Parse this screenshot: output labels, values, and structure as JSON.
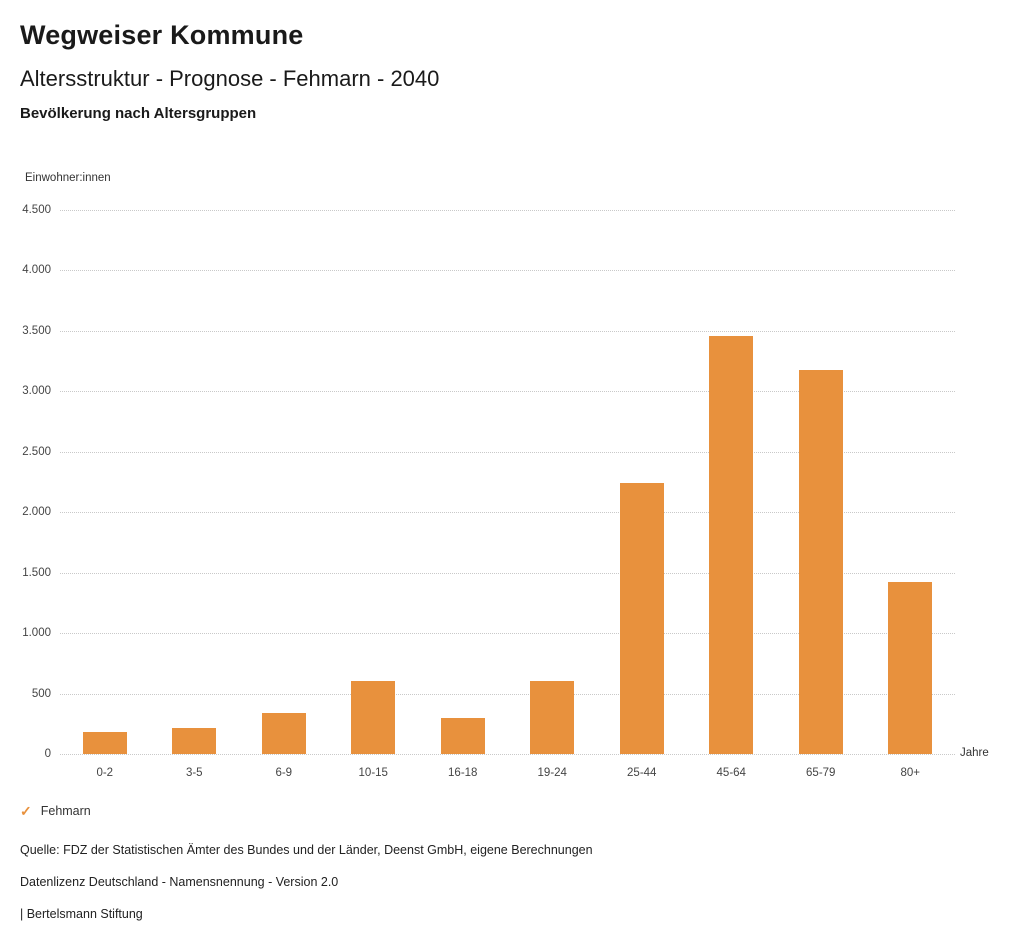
{
  "header": {
    "title": "Wegweiser Kommune",
    "subtitle": "Altersstruktur - Prognose - Fehmarn - 2040",
    "section": "Bevölkerung nach Altersgruppen"
  },
  "chart_data": {
    "type": "bar",
    "title": "Bevölkerung nach Altersgruppen",
    "categories": [
      "0-2",
      "3-5",
      "6-9",
      "10-15",
      "16-18",
      "19-24",
      "25-44",
      "45-64",
      "65-79",
      "80+"
    ],
    "values": [
      180,
      215,
      340,
      600,
      300,
      600,
      2240,
      3460,
      3175,
      1420
    ],
    "series_name": "Fehmarn",
    "ylabel": "Einwohner:innen",
    "xlabel": "Jahre",
    "ylim": [
      0,
      4500
    ],
    "y_ticks": [
      0,
      500,
      1000,
      1500,
      2000,
      2500,
      3000,
      3500,
      4000,
      4500
    ],
    "grid": "dotted-horizontal",
    "legend_position": "bottom-left",
    "bar_color": "#E8913D"
  },
  "legend": {
    "marker": "✓",
    "label": "Fehmarn",
    "color": "#E8913D"
  },
  "footer": {
    "source": "Quelle: FDZ der Statistischen Ämter des Bundes und der Länder, Deenst GmbH, eigene Berechnungen",
    "license": "Datenlizenz Deutschland - Namensnennung - Version 2.0",
    "attribution": "| Bertelsmann Stiftung"
  }
}
